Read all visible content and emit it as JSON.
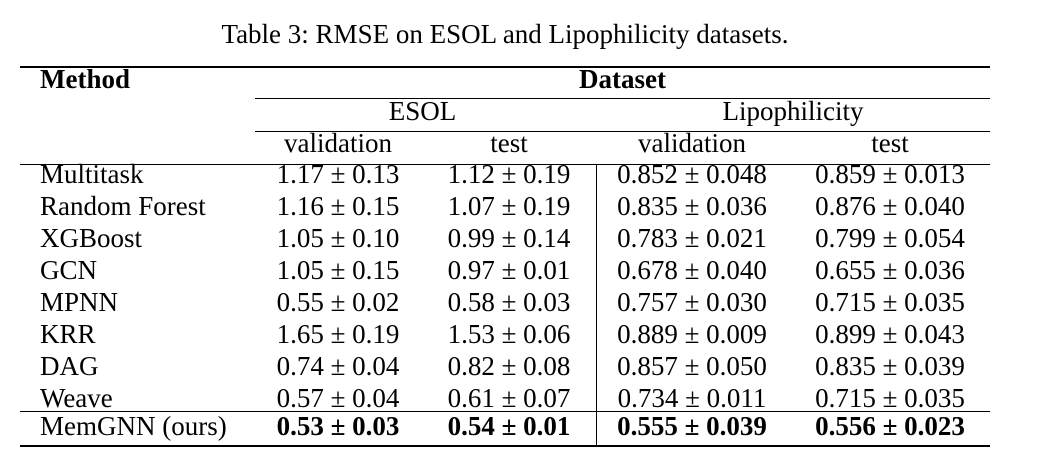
{
  "caption": "Table 3: RMSE on ESOL and Lipophilicity datasets.",
  "header": {
    "method": "Method",
    "dataset": "Dataset",
    "groups": [
      "ESOL",
      "Lipophilicity"
    ],
    "subcols": [
      "validation",
      "test",
      "validation",
      "test"
    ]
  },
  "rows": [
    {
      "method": "Multitask",
      "values": [
        "1.17 ± 0.13",
        "1.12 ± 0.19",
        "0.852 ± 0.048",
        "0.859 ± 0.013"
      ]
    },
    {
      "method": "Random Forest",
      "values": [
        "1.16 ± 0.15",
        "1.07 ± 0.19",
        "0.835 ± 0.036",
        "0.876 ± 0.040"
      ]
    },
    {
      "method": "XGBoost",
      "values": [
        "1.05 ± 0.10",
        "0.99 ± 0.14",
        "0.783 ± 0.021",
        "0.799 ± 0.054"
      ]
    },
    {
      "method": "GCN",
      "values": [
        "1.05 ± 0.15",
        "0.97 ± 0.01",
        "0.678 ± 0.040",
        "0.655 ± 0.036"
      ]
    },
    {
      "method": "MPNN",
      "values": [
        "0.55 ± 0.02",
        "0.58 ± 0.03",
        "0.757 ± 0.030",
        "0.715 ± 0.035"
      ]
    },
    {
      "method": "KRR",
      "values": [
        "1.65 ± 0.19",
        "1.53 ± 0.06",
        "0.889 ± 0.009",
        "0.899 ± 0.043"
      ]
    },
    {
      "method": "DAG",
      "values": [
        "0.74 ± 0.04",
        "0.82 ± 0.08",
        "0.857 ± 0.050",
        "0.835 ± 0.039"
      ]
    },
    {
      "method": "Weave",
      "values": [
        "0.57 ± 0.04",
        "0.61 ± 0.07",
        "0.734 ± 0.011",
        "0.715 ± 0.035"
      ]
    },
    {
      "method": "MemGNN (ours)",
      "values": [
        "0.53 ± 0.03",
        "0.54 ± 0.01",
        "0.555 ± 0.039",
        "0.556 ± 0.023"
      ],
      "bold_values": true
    }
  ]
}
